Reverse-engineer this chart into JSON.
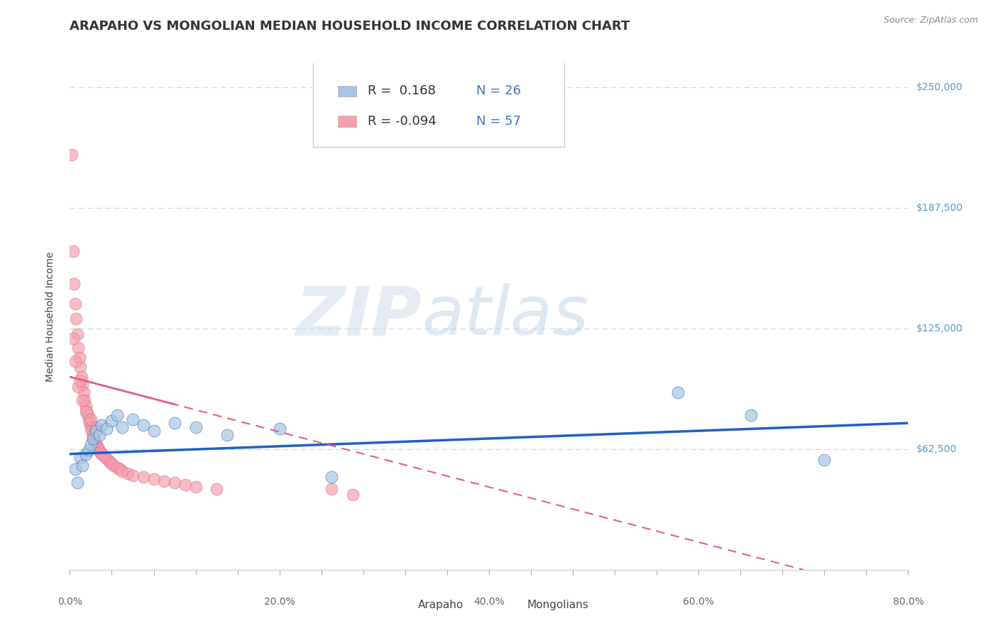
{
  "title": "ARAPAHO VS MONGOLIAN MEDIAN HOUSEHOLD INCOME CORRELATION CHART",
  "source": "Source: ZipAtlas.com",
  "ylabel": "Median Household Income",
  "xlim": [
    0,
    0.8
  ],
  "ylim": [
    0,
    262500
  ],
  "yticks": [
    0,
    62500,
    125000,
    187500,
    250000
  ],
  "ytick_labels": [
    "",
    "$62,500",
    "$125,000",
    "$187,500",
    "$250,000"
  ],
  "xtick_labels": [
    "0.0%",
    "",
    "",
    "",
    "",
    "20.0%",
    "",
    "",
    "",
    "",
    "40.0%",
    "",
    "",
    "",
    "",
    "60.0%",
    "",
    "",
    "",
    "",
    "80.0%"
  ],
  "xtick_vals": [
    0.0,
    0.04,
    0.08,
    0.12,
    0.16,
    0.2,
    0.24,
    0.28,
    0.32,
    0.36,
    0.4,
    0.44,
    0.48,
    0.52,
    0.56,
    0.6,
    0.64,
    0.68,
    0.72,
    0.76,
    0.8
  ],
  "arapaho_color": "#a8c4e0",
  "mongolian_color": "#f4a0b0",
  "arapaho_line_color": "#2060c0",
  "mongolian_line_color": "#e06080",
  "legend_r_arapaho": " 0.168",
  "legend_n_arapaho": "26",
  "legend_r_mongolian": "-0.094",
  "legend_n_mongolian": "57",
  "arapaho_x": [
    0.005,
    0.007,
    0.01,
    0.012,
    0.015,
    0.018,
    0.02,
    0.022,
    0.025,
    0.028,
    0.03,
    0.035,
    0.04,
    0.045,
    0.05,
    0.06,
    0.07,
    0.08,
    0.1,
    0.12,
    0.15,
    0.2,
    0.25,
    0.58,
    0.65,
    0.72
  ],
  "arapaho_y": [
    52000,
    45000,
    58000,
    54000,
    60000,
    62000,
    65000,
    68000,
    72000,
    70000,
    75000,
    73000,
    77000,
    80000,
    74000,
    78000,
    75000,
    72000,
    76000,
    74000,
    70000,
    73000,
    48000,
    92000,
    80000,
    57000
  ],
  "mongolian_x": [
    0.002,
    0.003,
    0.004,
    0.005,
    0.006,
    0.007,
    0.008,
    0.009,
    0.01,
    0.011,
    0.012,
    0.013,
    0.014,
    0.015,
    0.016,
    0.017,
    0.018,
    0.019,
    0.02,
    0.021,
    0.022,
    0.023,
    0.024,
    0.025,
    0.026,
    0.027,
    0.028,
    0.029,
    0.03,
    0.032,
    0.034,
    0.036,
    0.038,
    0.04,
    0.042,
    0.045,
    0.048,
    0.05,
    0.055,
    0.06,
    0.07,
    0.08,
    0.09,
    0.1,
    0.11,
    0.12,
    0.14,
    0.003,
    0.005,
    0.008,
    0.012,
    0.015,
    0.02,
    0.025,
    0.25,
    0.27,
    0.01
  ],
  "mongolian_y": [
    215000,
    165000,
    148000,
    138000,
    130000,
    122000,
    115000,
    110000,
    105000,
    100000,
    96000,
    92000,
    88000,
    85000,
    82000,
    80000,
    78000,
    76000,
    74000,
    72000,
    70000,
    68000,
    67000,
    65000,
    64000,
    63000,
    62000,
    61000,
    60000,
    59000,
    58000,
    57000,
    56000,
    55000,
    54000,
    53000,
    52000,
    51000,
    50000,
    49000,
    48000,
    47000,
    46000,
    45000,
    44000,
    43000,
    42000,
    120000,
    108000,
    95000,
    88000,
    82000,
    78000,
    74000,
    42000,
    39000,
    98000
  ],
  "watermark_zip": "ZIP",
  "watermark_atlas": "atlas",
  "background_color": "#ffffff",
  "grid_color": "#c8d8ec",
  "title_fontsize": 13,
  "axis_label_fontsize": 10,
  "tick_fontsize": 10,
  "legend_fontsize": 13,
  "source_fontsize": 9
}
